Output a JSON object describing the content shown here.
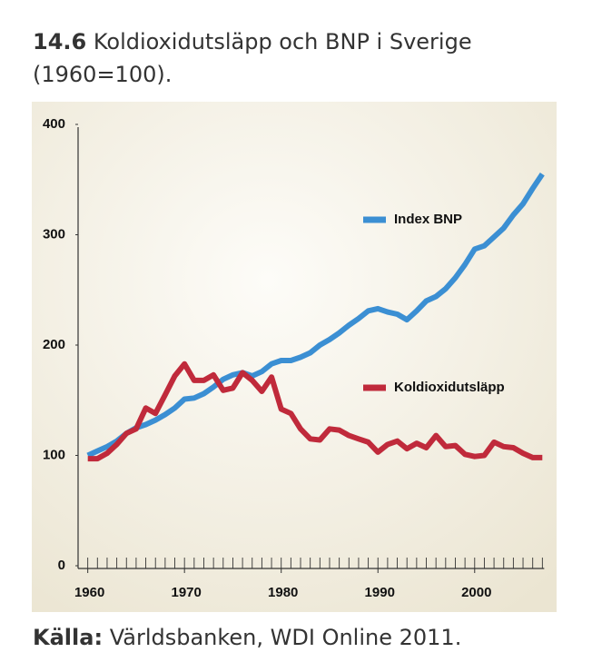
{
  "chart_data": {
    "type": "line",
    "figure_number": "14.6",
    "title": "Koldioxidutsläpp och BNP i Sverige (1960=100).",
    "source_label": "Källa:",
    "source": "Världsbanken, WDI Online 2011.",
    "x": [
      1960,
      1961,
      1962,
      1963,
      1964,
      1965,
      1966,
      1967,
      1968,
      1969,
      1970,
      1971,
      1972,
      1973,
      1974,
      1975,
      1976,
      1977,
      1978,
      1979,
      1980,
      1981,
      1982,
      1983,
      1984,
      1985,
      1986,
      1987,
      1988,
      1989,
      1990,
      1991,
      1992,
      1993,
      1994,
      1995,
      1996,
      1997,
      1998,
      1999,
      2000,
      2001,
      2002,
      2003,
      2004,
      2005,
      2006,
      2007
    ],
    "series": [
      {
        "name": "Index BNP",
        "color": "#3b8fd3",
        "values": [
          100,
          104,
          108,
          113,
          120,
          125,
          128,
          132,
          137,
          143,
          151,
          152,
          156,
          162,
          169,
          173,
          175,
          172,
          176,
          183,
          186,
          186,
          189,
          193,
          200,
          205,
          211,
          218,
          224,
          231,
          233,
          230,
          228,
          223,
          231,
          240,
          244,
          251,
          261,
          273,
          287,
          290,
          298,
          306,
          318,
          328,
          342,
          355
        ]
      },
      {
        "name": "Koldioxidutsläpp",
        "color": "#c02a3b",
        "values": [
          97,
          97,
          102,
          110,
          120,
          124,
          143,
          138,
          155,
          172,
          183,
          168,
          168,
          173,
          159,
          161,
          175,
          168,
          158,
          171,
          142,
          138,
          124,
          115,
          114,
          124,
          123,
          118,
          115,
          112,
          103,
          110,
          113,
          106,
          111,
          107,
          118,
          108,
          109,
          101,
          99,
          100,
          112,
          108,
          107,
          102,
          98,
          98
        ]
      }
    ],
    "xlim": [
      1959,
      2008
    ],
    "xticks": [
      1960,
      1970,
      1980,
      1990,
      2000
    ],
    "xminorticks": [
      1960,
      1961,
      1962,
      1963,
      1964,
      1965,
      1966,
      1967,
      1968,
      1969,
      1970,
      1971,
      1972,
      1973,
      1974,
      1975,
      1976,
      1977,
      1978,
      1979,
      1980,
      1981,
      1982,
      1983,
      1984,
      1985,
      1986,
      1987,
      1988,
      1989,
      1990,
      1991,
      1992,
      1993,
      1994,
      1995,
      1996,
      1997,
      1998,
      1999,
      2000,
      2001,
      2002,
      2003,
      2004,
      2005,
      2006,
      2007
    ],
    "ylim": [
      0,
      400
    ],
    "yticks": [
      0,
      100,
      200,
      300,
      400
    ]
  }
}
